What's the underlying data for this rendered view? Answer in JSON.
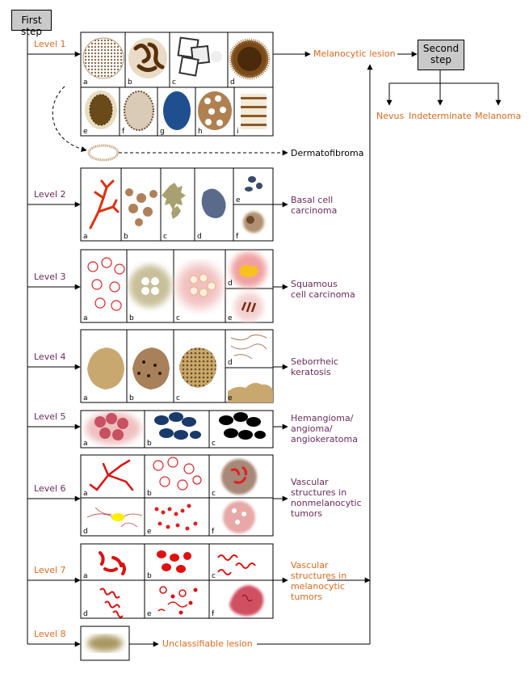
{
  "first_step": "First step",
  "second_step": "Second\nstep",
  "levels": [
    "Level 1",
    "Level 2",
    "Level 3",
    "Level 4",
    "Level 5",
    "Level 6",
    "Level 7",
    "Level 8"
  ],
  "outcomes": {
    "melanocytic": "Melanocytic lesion",
    "dermatofibroma": "Dermatofibroma",
    "bcc": "Basal cell\ncarcinoma",
    "scc": "Squamous\ncell carcinoma",
    "sk": "Seborrheic\nkeratosis",
    "hem": "Hemangioma/\nangioma/\nangiokeratoma",
    "vasc_non": "Vascular\nstructures in\nnonmelanocytic\ntumors",
    "vasc_mel": "Vascular\nstructures in\nmelanocytic\ntumors",
    "unclass": "Unclassifiable lesion"
  },
  "second_outcomes": [
    "Nevus",
    "Indeterminate",
    "Melanoma"
  ],
  "panel_letters": [
    "a",
    "b",
    "c",
    "d",
    "e",
    "f",
    "g",
    "h",
    "i"
  ],
  "colors": {
    "orange": "#e06a1b",
    "purple": "#6b2a5e",
    "box": "#c9c9c9"
  }
}
